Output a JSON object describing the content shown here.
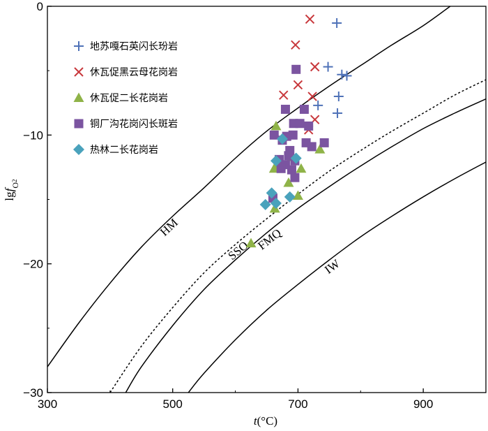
{
  "chart_data": {
    "type": "scatter",
    "title": "",
    "xlabel": {
      "italic": "t",
      "rest": "(°C)"
    },
    "ylabel": {
      "main": "lg",
      "italic": "f",
      "sub": "O",
      "subsub": "2"
    },
    "xlim": [
      300,
      1000
    ],
    "ylim": [
      -30,
      0
    ],
    "x_ticks": [
      300,
      500,
      700,
      900
    ],
    "y_ticks": [
      0,
      -10,
      -20,
      -30
    ],
    "grid": false,
    "legend_position": "top-left",
    "colors": {
      "blue": "#4f72b8",
      "red": "#c8383c",
      "green": "#8fb348",
      "purple": "#7b54a0",
      "teal": "#4aa2bc"
    },
    "buffer_curves": [
      {
        "name": "HM",
        "style": "solid",
        "points": [
          [
            300,
            -28
          ],
          [
            350,
            -24.6
          ],
          [
            400,
            -21.5
          ],
          [
            450,
            -18.7
          ],
          [
            500,
            -16.3
          ],
          [
            550,
            -14.1
          ],
          [
            600,
            -11.8
          ],
          [
            650,
            -9.7
          ],
          [
            700,
            -7.9
          ],
          [
            750,
            -6.2
          ],
          [
            800,
            -4.6
          ],
          [
            850,
            -3.0
          ],
          [
            900,
            -1.5
          ],
          [
            943,
            0
          ]
        ]
      },
      {
        "name": "SSO",
        "style": "dashed",
        "points": [
          [
            400,
            -30
          ],
          [
            450,
            -26.4
          ],
          [
            500,
            -23.4
          ],
          [
            550,
            -20.7
          ],
          [
            600,
            -18.5
          ],
          [
            650,
            -16.5
          ],
          [
            700,
            -14.6
          ],
          [
            750,
            -12.8
          ],
          [
            800,
            -11.2
          ],
          [
            850,
            -9.7
          ],
          [
            900,
            -8.3
          ],
          [
            950,
            -6.9
          ],
          [
            1000,
            -5.7
          ]
        ]
      },
      {
        "name": "FMQ",
        "style": "solid",
        "points": [
          [
            425,
            -30
          ],
          [
            450,
            -28.0
          ],
          [
            500,
            -24.8
          ],
          [
            550,
            -22.0
          ],
          [
            600,
            -19.7
          ],
          [
            650,
            -17.6
          ],
          [
            700,
            -15.7
          ],
          [
            750,
            -14.0
          ],
          [
            800,
            -12.4
          ],
          [
            850,
            -10.9
          ],
          [
            900,
            -9.5
          ],
          [
            950,
            -8.3
          ],
          [
            1000,
            -7.2
          ]
        ]
      },
      {
        "name": "IW",
        "style": "solid",
        "points": [
          [
            525,
            -30
          ],
          [
            550,
            -28.5
          ],
          [
            600,
            -25.9
          ],
          [
            650,
            -23.6
          ],
          [
            700,
            -21.6
          ],
          [
            750,
            -19.7
          ],
          [
            800,
            -17.9
          ],
          [
            850,
            -16.3
          ],
          [
            900,
            -14.8
          ],
          [
            950,
            -13.4
          ],
          [
            1000,
            -12.1
          ]
        ]
      }
    ],
    "series": [
      {
        "name": "地苏嘎石英闪长玢岩",
        "marker": "plus",
        "color": "#4f72b8",
        "points": [
          [
            762,
            -1.3
          ],
          [
            748,
            -4.7
          ],
          [
            770,
            -5.3
          ],
          [
            778,
            -5.4
          ],
          [
            765,
            -7.0
          ],
          [
            732,
            -7.7
          ],
          [
            763,
            -8.3
          ]
        ]
      },
      {
        "name": "休瓦促黑云母花岗岩",
        "marker": "x",
        "color": "#c8383c",
        "points": [
          [
            719,
            -1.0
          ],
          [
            696,
            -3.0
          ],
          [
            727,
            -4.7
          ],
          [
            700,
            -6.1
          ],
          [
            677,
            -6.9
          ],
          [
            723,
            -7.0
          ],
          [
            727,
            -8.8
          ],
          [
            717,
            -9.6
          ]
        ]
      },
      {
        "name": "休瓦促二长花岗岩",
        "marker": "triangle",
        "color": "#8fb348",
        "points": [
          [
            665,
            -9.3
          ],
          [
            735,
            -11.1
          ],
          [
            690,
            -11.7
          ],
          [
            670,
            -12.2
          ],
          [
            705,
            -12.6
          ],
          [
            662,
            -12.6
          ],
          [
            685,
            -13.7
          ],
          [
            700,
            -14.7
          ],
          [
            663,
            -15.7
          ],
          [
            625,
            -18.4
          ]
        ]
      },
      {
        "name": "铜厂沟花岗闪长斑岩",
        "marker": "square",
        "color": "#7b54a0",
        "points": [
          [
            697,
            -4.9
          ],
          [
            680,
            -8.0
          ],
          [
            710,
            -8.0
          ],
          [
            693,
            -9.1
          ],
          [
            703,
            -9.1
          ],
          [
            717,
            -9.3
          ],
          [
            692,
            -10.0
          ],
          [
            662,
            -10.0
          ],
          [
            682,
            -10.1
          ],
          [
            675,
            -10.4
          ],
          [
            713,
            -10.6
          ],
          [
            742,
            -10.6
          ],
          [
            722,
            -10.9
          ],
          [
            687,
            -11.2
          ],
          [
            685,
            -11.6
          ],
          [
            670,
            -11.9
          ],
          [
            695,
            -12.0
          ],
          [
            680,
            -12.3
          ],
          [
            673,
            -12.6
          ],
          [
            690,
            -12.7
          ],
          [
            695,
            -13.3
          ],
          [
            660,
            -14.9
          ]
        ]
      },
      {
        "name": "热林二长花岗岩",
        "marker": "diamond",
        "color": "#4aa2bc",
        "points": [
          [
            675,
            -10.3
          ],
          [
            697,
            -11.8
          ],
          [
            665,
            -12.0
          ],
          [
            658,
            -14.5
          ],
          [
            687,
            -14.8
          ],
          [
            665,
            -15.3
          ],
          [
            648,
            -15.4
          ]
        ]
      }
    ]
  }
}
